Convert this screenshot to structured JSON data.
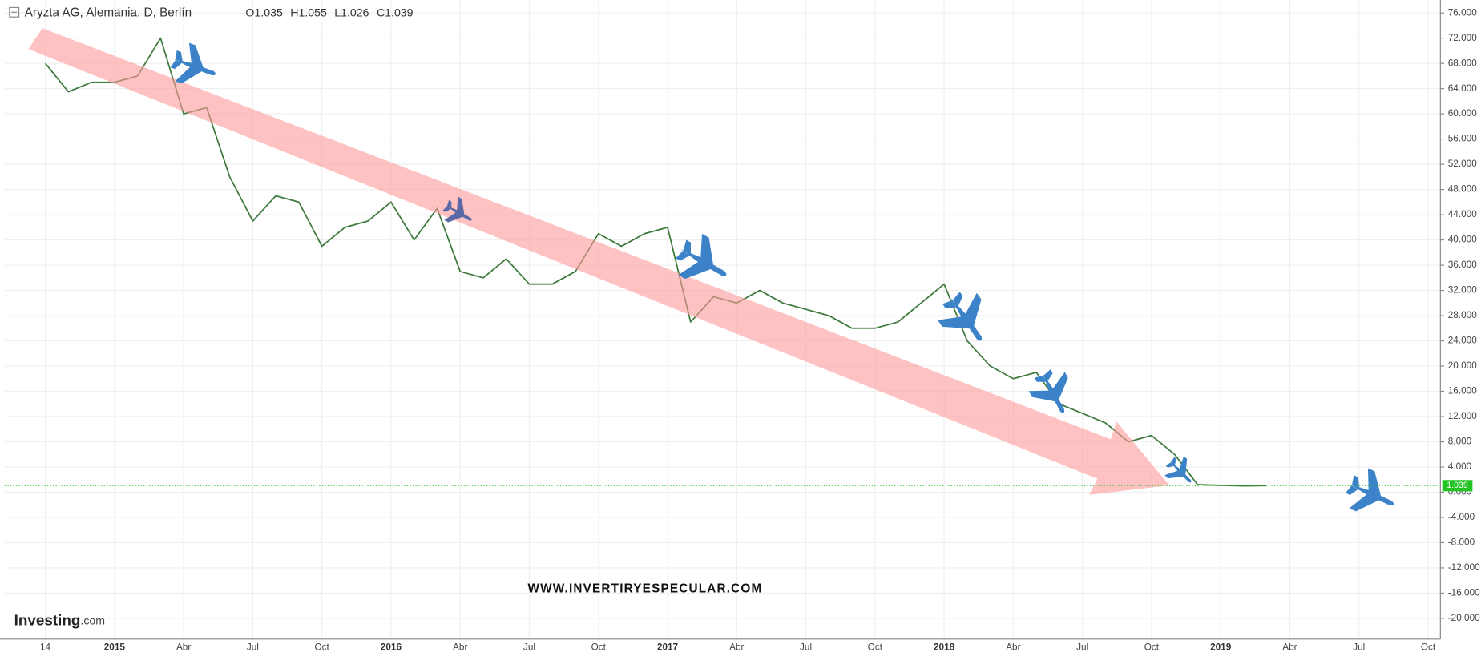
{
  "chart_data": {
    "type": "line",
    "title": "Aryzta AG, Alemania, D, Berlín",
    "ohlc": [
      {
        "label": "O",
        "value": 1.035
      },
      {
        "label": "H",
        "value": 1.055
      },
      {
        "label": "L",
        "value": 1.026
      },
      {
        "label": "C",
        "value": 1.039
      }
    ],
    "watermark": "WWW.INVERTIRYESPECULAR.COM",
    "logo": {
      "name": "Investing",
      "suffix": ".com"
    },
    "categories": [
      "14",
      null,
      null,
      "2015",
      null,
      null,
      "Abr",
      null,
      null,
      "Jul",
      null,
      null,
      "Oct",
      null,
      null,
      "2016",
      null,
      null,
      "Abr",
      null,
      null,
      "Jul",
      null,
      null,
      "Oct",
      null,
      null,
      "2017",
      null,
      null,
      "Abr",
      null,
      null,
      "Jul",
      null,
      null,
      "Oct",
      null,
      null,
      "2018",
      null,
      null,
      "Abr",
      null,
      null,
      "Jul",
      null,
      null,
      "Oct",
      null,
      null,
      "2019",
      null,
      null,
      "Abr",
      null,
      null,
      "Jul",
      null,
      null,
      "Oct"
    ],
    "series": [
      {
        "color": "#3f7a3f",
        "values": [
          68,
          63.5,
          65,
          65,
          66,
          72,
          60,
          61,
          50,
          43,
          47,
          46,
          39,
          42,
          43,
          46,
          40,
          45,
          35,
          34,
          37,
          33,
          33,
          35,
          41,
          39,
          41,
          42,
          27,
          31,
          30,
          32,
          30,
          29,
          28,
          26,
          26,
          27,
          30,
          33,
          24,
          20,
          18,
          19,
          14,
          12.5,
          11,
          8,
          9,
          6,
          1.2,
          1.1,
          1.0,
          1.04,
          null,
          null,
          null,
          null,
          null,
          null,
          null
        ]
      }
    ],
    "last_value": 1.039,
    "last_color": "#22c322",
    "ylim": [
      -20,
      76
    ],
    "yticks": [
      {
        "value": 76,
        "label": "76.000"
      },
      {
        "value": 72,
        "label": "72.000"
      },
      {
        "value": 68,
        "label": "68.000"
      },
      {
        "value": 64,
        "label": "64.000"
      },
      {
        "value": 60,
        "label": "60.000"
      },
      {
        "value": 56,
        "label": "56.000"
      },
      {
        "value": 52,
        "label": "52.000"
      },
      {
        "value": 48,
        "label": "48.000"
      },
      {
        "value": 44,
        "label": "44.000"
      },
      {
        "value": 40,
        "label": "40.000"
      },
      {
        "value": 36,
        "label": "36.000"
      },
      {
        "value": 32,
        "label": "32.000"
      },
      {
        "value": 28,
        "label": "28.000"
      },
      {
        "value": 24,
        "label": "24.000"
      },
      {
        "value": 20,
        "label": "20.000"
      },
      {
        "value": 16,
        "label": "16.000"
      },
      {
        "value": 12,
        "label": "12.000"
      },
      {
        "value": 8,
        "label": "8.000"
      },
      {
        "value": 4,
        "label": "4.000"
      },
      {
        "value": 0,
        "label": "0.000"
      },
      {
        "value": -4,
        "label": "-4.000"
      },
      {
        "value": -8,
        "label": "-8.000"
      },
      {
        "value": -12,
        "label": "-12.000"
      },
      {
        "value": -16,
        "label": "-16.000"
      },
      {
        "value": -20,
        "label": "-20.000"
      }
    ],
    "grid": true
  }
}
